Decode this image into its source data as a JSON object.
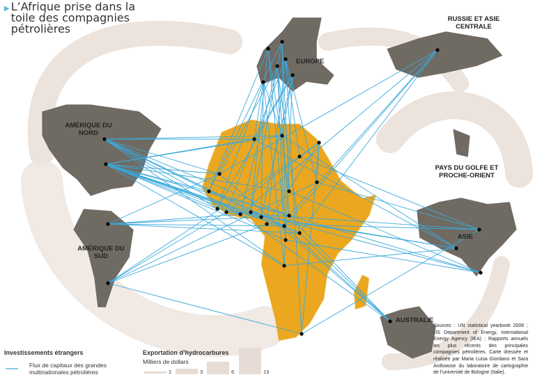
{
  "title": "L’Afrique prise dans la toile des compagnies pétrolières",
  "regions": {
    "europe": "EUROPE",
    "russie": "RUSSIE ET ASIE CENTRALE",
    "amerique_nord": "AMÉRIQUE DU NORD",
    "amerique_sud": "AMÉRIQUE DU SUD",
    "golfe": "PAYS DU GOLFE ET PROCHE-ORIENT",
    "asie": "ASIE",
    "australie": "AUSTRALIE"
  },
  "legend": {
    "invest_title": "Investissements étrangers",
    "flux_label": "Flux de capitaux des grandes multinationales pétrolières",
    "export_title": "Exportation d’hydrocarbures",
    "export_unit": "Milliers de dollars",
    "export_sizes": [
      "1",
      "3",
      "6",
      "13"
    ]
  },
  "sources": "Sources : UN statistical yearbook 2006 ; US Department of Energy, International Energy Agency (IEA) ; Rapports annuels les plus récents des principales compagnies pétrolières. Carte dressée et réalisée par Maria Luisa Giordano et Sara Anifowose du laboratoire de cartographie de l’université de Bologne (Italie).",
  "colors": {
    "africa": "#eaa71f",
    "land": "#6f6b63",
    "flow": "#3aa9dc",
    "arrows": "#e8ddd6",
    "title_marker": "#5bb4dc"
  }
}
